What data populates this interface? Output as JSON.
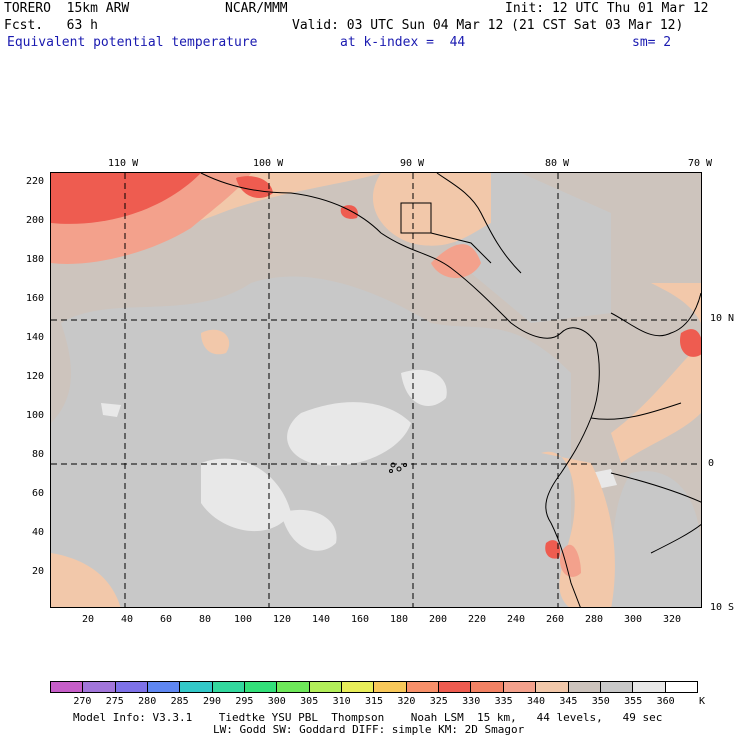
{
  "header": {
    "model": "TORERO  15km ARW",
    "org": "NCAR/MMM",
    "init": "Init: 12 UTC Thu 01 Mar 12",
    "fcst": "Fcst.   63 h",
    "valid": "Valid: 03 UTC Sun 04 Mar 12 (21 CST Sat 03 Mar 12)",
    "field": "Equivalent potential temperature",
    "level": "at k-index =  44",
    "smooth": "sm= 2"
  },
  "map": {
    "lon_labels": [
      "110 W",
      "100 W",
      "90 W",
      "80 W",
      "70 W"
    ],
    "lat_labels": [
      "10 N",
      "0",
      "10 S"
    ],
    "y_ticks": [
      "220",
      "200",
      "180",
      "160",
      "140",
      "120",
      "100",
      "80",
      "60",
      "40",
      "20"
    ],
    "x_ticks": [
      "20",
      "40",
      "60",
      "80",
      "100",
      "120",
      "140",
      "160",
      "180",
      "200",
      "220",
      "240",
      "260",
      "280",
      "300",
      "320"
    ],
    "colors": {
      "background": "#cdc4bd",
      "grey": "#c8c8c8",
      "light": "#e8e8e8",
      "peach": "#f2c8aa",
      "salmon": "#f3a18c",
      "red": "#ee5c50",
      "border": "#000000"
    }
  },
  "legend": {
    "labels": [
      "270",
      "275",
      "280",
      "285",
      "290",
      "295",
      "300",
      "305",
      "310",
      "315",
      "320",
      "325",
      "330",
      "335",
      "340",
      "345",
      "350",
      "355",
      "360"
    ],
    "unit": "K",
    "colors": [
      "#c65ec8",
      "#a276da",
      "#7e72e8",
      "#5f87f2",
      "#33c8c8",
      "#33d89e",
      "#33e07a",
      "#6ee85a",
      "#b2ee5a",
      "#e8ee5a",
      "#f8c85a",
      "#f7906a",
      "#ee5c50",
      "#f28264",
      "#f3a18c",
      "#f2c8aa",
      "#cdc4bd",
      "#c8c8c8",
      "#e8e8e8",
      "#ffffff"
    ]
  },
  "footer": {
    "line1": "Model Info: V3.3.1    Tiedtke YSU PBL  Thompson    Noah LSM  15 km,   44 levels,   49 sec",
    "line2": "LW: Godd SW: Goddard DIFF: simple KM: 2D Smagor"
  }
}
